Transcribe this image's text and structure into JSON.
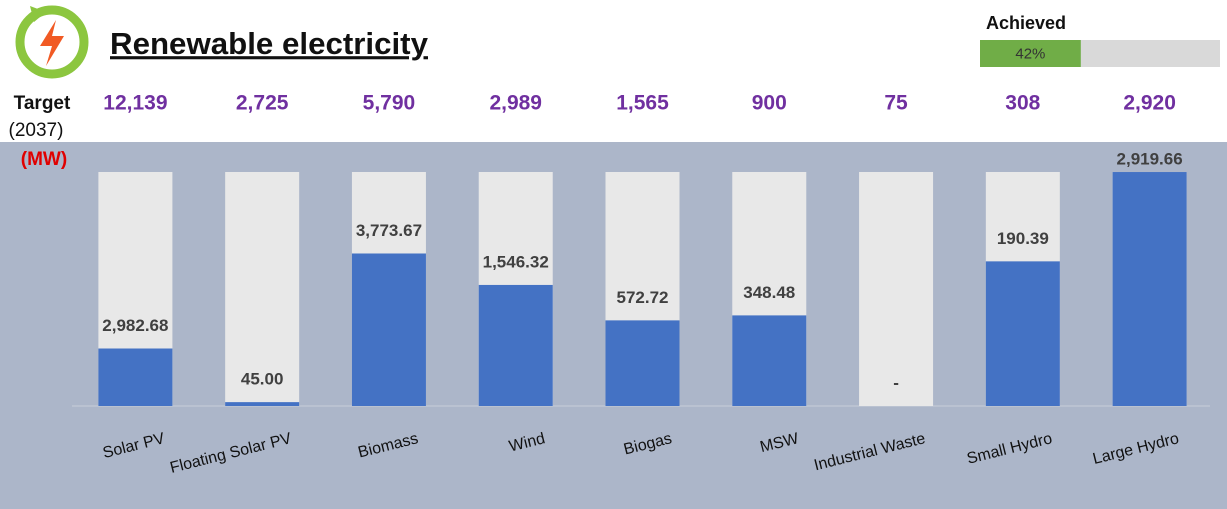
{
  "chart_data": {
    "type": "bar",
    "title": "Renewable electricity",
    "target_label": "Target",
    "target_year": "(2037)",
    "unit": "(MW)",
    "achieved": {
      "label": "Achieved",
      "value": 42,
      "value_label": "42%",
      "xlim": [
        0,
        100
      ],
      "color": "#70ad47"
    },
    "categories": [
      "Solar PV",
      "Floating Solar PV",
      "Biomass",
      "Wind",
      "Biogas",
      "MSW",
      "Industrial Waste",
      "Small Hydro",
      "Large Hydro"
    ],
    "targets": [
      12139,
      2725,
      5790,
      2989,
      1565,
      900,
      75,
      308,
      2920
    ],
    "target_labels": [
      "12,139",
      "2,725",
      "5,790",
      "2,989",
      "1,565",
      "900",
      "75",
      "308",
      "2,920"
    ],
    "values": [
      2982.68,
      45.0,
      3773.67,
      1546.32,
      572.72,
      348.48,
      0,
      190.39,
      2919.66
    ],
    "value_labels": [
      "2,982.68",
      "45.00",
      "3,773.67",
      "1,546.32",
      "572.72",
      "348.48",
      "-",
      "190.39",
      "2,919.66"
    ],
    "color": "#4472c4",
    "target_color": "#e8e8e8"
  }
}
